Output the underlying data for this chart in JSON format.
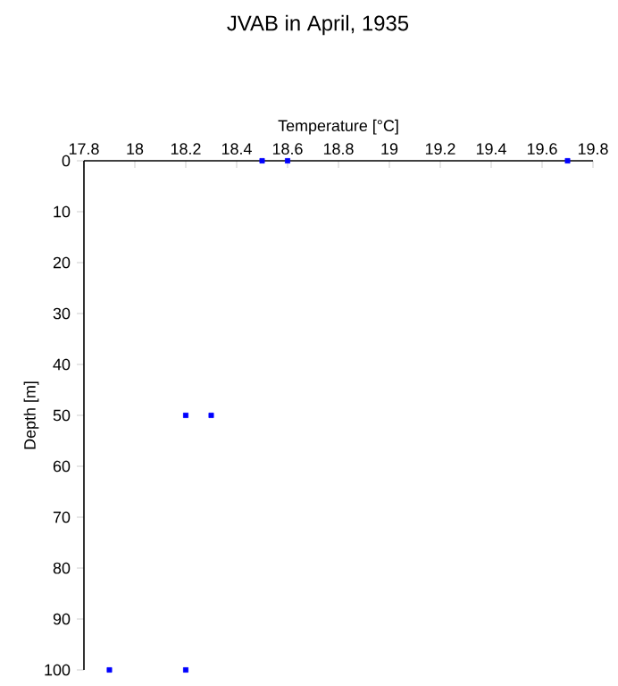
{
  "chart_data": {
    "type": "scatter",
    "title": "JVAB in April, 1935",
    "xlabel": "Temperature [°C]",
    "ylabel": "Depth [m]",
    "x": [
      18.5,
      18.6,
      19.7,
      18.2,
      18.3,
      17.9,
      18.2
    ],
    "values": [
      0,
      0,
      0,
      50,
      50,
      100,
      100
    ],
    "color": "#0000ff",
    "marker": "square",
    "xlim": [
      17.8,
      19.8
    ],
    "xticks": [
      17.8,
      18,
      18.2,
      18.4,
      18.6,
      18.8,
      19,
      19.2,
      19.4,
      19.6,
      19.8
    ],
    "ylim": [
      100,
      0
    ],
    "yticks": [
      0,
      10,
      20,
      30,
      40,
      50,
      60,
      70,
      80,
      90,
      100
    ]
  }
}
